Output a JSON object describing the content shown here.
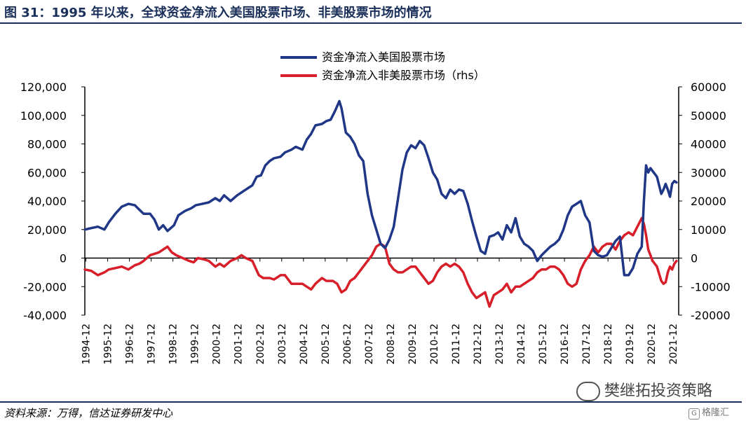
{
  "header": {
    "title": "图 31：1995 年以来，全球资金净流入美国股票市场、非美股票市场的情况"
  },
  "footer": {
    "source": "资料来源：万得，信达证券研发中心",
    "watermark": "樊继拓投资策略",
    "badge": "格隆汇"
  },
  "chart_data": {
    "type": "line",
    "title": "",
    "xlabel": "",
    "ylabel": "",
    "x_ticks": [
      "1994-12",
      "1995-12",
      "1996-12",
      "1997-12",
      "1998-12",
      "1999-12",
      "2000-12",
      "2001-12",
      "2002-12",
      "2003-12",
      "2004-12",
      "2005-12",
      "2006-12",
      "2007-12",
      "2008-12",
      "2009-12",
      "2010-12",
      "2011-12",
      "2012-12",
      "2013-12",
      "2014-12",
      "2015-12",
      "2016-12",
      "2017-12",
      "2018-12",
      "2019-12",
      "2020-12",
      "2021-12"
    ],
    "xlim": [
      1994.9,
      2022.2
    ],
    "y_left": {
      "lim": [
        -40000,
        120000
      ],
      "ticks": [
        -40000,
        -20000,
        0,
        20000,
        40000,
        60000,
        80000,
        100000,
        120000
      ],
      "labels": [
        "-40,000",
        "-20,000",
        "0",
        "20,000",
        "40,000",
        "60,000",
        "80,000",
        "100,000",
        "120,000"
      ]
    },
    "y_right": {
      "lim": [
        -20000,
        60000
      ],
      "ticks": [
        -20000,
        -10000,
        0,
        10000,
        20000,
        30000,
        40000,
        50000,
        60000
      ],
      "labels": [
        "-20000",
        "-10000",
        "0",
        "10000",
        "20000",
        "30000",
        "40000",
        "50000",
        "60000"
      ]
    },
    "series": [
      {
        "name": "资金净流入美国股票市场",
        "axis": "left",
        "color": "#1f3786",
        "points": [
          [
            1994.9,
            20000
          ],
          [
            1995.2,
            21000
          ],
          [
            1995.5,
            22000
          ],
          [
            1995.8,
            20000
          ],
          [
            1996.0,
            25000
          ],
          [
            1996.3,
            31000
          ],
          [
            1996.6,
            36000
          ],
          [
            1996.9,
            38000
          ],
          [
            1997.2,
            37000
          ],
          [
            1997.4,
            34000
          ],
          [
            1997.6,
            31000
          ],
          [
            1997.9,
            31000
          ],
          [
            1998.1,
            27000
          ],
          [
            1998.3,
            20000
          ],
          [
            1998.5,
            23000
          ],
          [
            1998.7,
            19000
          ],
          [
            1999.0,
            23000
          ],
          [
            1999.2,
            30000
          ],
          [
            1999.5,
            33000
          ],
          [
            1999.8,
            35000
          ],
          [
            2000.0,
            37000
          ],
          [
            2000.3,
            38000
          ],
          [
            2000.6,
            39000
          ],
          [
            2000.9,
            42000
          ],
          [
            2001.1,
            40000
          ],
          [
            2001.3,
            44000
          ],
          [
            2001.6,
            40000
          ],
          [
            2001.9,
            44000
          ],
          [
            2002.1,
            46000
          ],
          [
            2002.3,
            48000
          ],
          [
            2002.6,
            51000
          ],
          [
            2002.8,
            57000
          ],
          [
            2003.0,
            58000
          ],
          [
            2003.2,
            65000
          ],
          [
            2003.4,
            68000
          ],
          [
            2003.6,
            70000
          ],
          [
            2003.9,
            71000
          ],
          [
            2004.1,
            74000
          ],
          [
            2004.4,
            76000
          ],
          [
            2004.6,
            78000
          ],
          [
            2004.9,
            76000
          ],
          [
            2005.1,
            83000
          ],
          [
            2005.3,
            87000
          ],
          [
            2005.5,
            93000
          ],
          [
            2005.8,
            94000
          ],
          [
            2006.0,
            96000
          ],
          [
            2006.2,
            97000
          ],
          [
            2006.4,
            103000
          ],
          [
            2006.6,
            110000
          ],
          [
            2006.7,
            105000
          ],
          [
            2006.9,
            88000
          ],
          [
            2007.1,
            85000
          ],
          [
            2007.3,
            80000
          ],
          [
            2007.5,
            72000
          ],
          [
            2007.7,
            68000
          ],
          [
            2007.9,
            45000
          ],
          [
            2008.1,
            30000
          ],
          [
            2008.3,
            20000
          ],
          [
            2008.5,
            10000
          ],
          [
            2008.7,
            7000
          ],
          [
            2008.9,
            13000
          ],
          [
            2009.1,
            22000
          ],
          [
            2009.3,
            42000
          ],
          [
            2009.5,
            62000
          ],
          [
            2009.7,
            74000
          ],
          [
            2009.9,
            79000
          ],
          [
            2010.1,
            77000
          ],
          [
            2010.3,
            82000
          ],
          [
            2010.5,
            79000
          ],
          [
            2010.7,
            70000
          ],
          [
            2010.9,
            60000
          ],
          [
            2011.1,
            55000
          ],
          [
            2011.3,
            45000
          ],
          [
            2011.5,
            42000
          ],
          [
            2011.7,
            48000
          ],
          [
            2011.9,
            45000
          ],
          [
            2012.1,
            48000
          ],
          [
            2012.3,
            47000
          ],
          [
            2012.5,
            38000
          ],
          [
            2012.7,
            26000
          ],
          [
            2012.9,
            15000
          ],
          [
            2013.1,
            5000
          ],
          [
            2013.3,
            3000
          ],
          [
            2013.5,
            15000
          ],
          [
            2013.7,
            16000
          ],
          [
            2013.9,
            18000
          ],
          [
            2014.1,
            13000
          ],
          [
            2014.3,
            23000
          ],
          [
            2014.5,
            18000
          ],
          [
            2014.7,
            28000
          ],
          [
            2014.9,
            15000
          ],
          [
            2015.1,
            10000
          ],
          [
            2015.3,
            8000
          ],
          [
            2015.5,
            5000
          ],
          [
            2015.7,
            -2000
          ],
          [
            2015.9,
            2000
          ],
          [
            2016.1,
            5000
          ],
          [
            2016.3,
            8000
          ],
          [
            2016.5,
            10000
          ],
          [
            2016.7,
            13000
          ],
          [
            2016.9,
            20000
          ],
          [
            2017.1,
            30000
          ],
          [
            2017.3,
            36000
          ],
          [
            2017.5,
            38000
          ],
          [
            2017.7,
            40000
          ],
          [
            2017.9,
            30000
          ],
          [
            2018.1,
            25000
          ],
          [
            2018.3,
            5000
          ],
          [
            2018.5,
            2000
          ],
          [
            2018.7,
            1000
          ],
          [
            2018.9,
            2000
          ],
          [
            2019.1,
            7000
          ],
          [
            2019.3,
            12000
          ],
          [
            2019.5,
            15000
          ],
          [
            2019.7,
            -12000
          ],
          [
            2019.9,
            -12000
          ],
          [
            2020.1,
            -7000
          ],
          [
            2020.3,
            3000
          ],
          [
            2020.5,
            8000
          ],
          [
            2020.6,
            40000
          ],
          [
            2020.7,
            65000
          ],
          [
            2020.8,
            60000
          ],
          [
            2020.9,
            63000
          ],
          [
            2021.0,
            61000
          ],
          [
            2021.2,
            57000
          ],
          [
            2021.4,
            45000
          ],
          [
            2021.5,
            48000
          ],
          [
            2021.6,
            52000
          ],
          [
            2021.7,
            48000
          ],
          [
            2021.8,
            43000
          ],
          [
            2021.9,
            52000
          ],
          [
            2022.0,
            54000
          ],
          [
            2022.1,
            53000
          ]
        ]
      },
      {
        "name": "资金净流入非美股票市场（rhs）",
        "axis": "right",
        "color": "#d81e29",
        "points": [
          [
            1994.9,
            -4000
          ],
          [
            1995.2,
            -4500
          ],
          [
            1995.5,
            -6000
          ],
          [
            1995.8,
            -5000
          ],
          [
            1996.0,
            -4000
          ],
          [
            1996.3,
            -3500
          ],
          [
            1996.6,
            -3000
          ],
          [
            1996.9,
            -4000
          ],
          [
            1997.2,
            -2500
          ],
          [
            1997.4,
            -2000
          ],
          [
            1997.6,
            -1000
          ],
          [
            1997.9,
            1000
          ],
          [
            1998.1,
            1500
          ],
          [
            1998.3,
            2000
          ],
          [
            1998.5,
            3000
          ],
          [
            1998.7,
            4000
          ],
          [
            1998.9,
            2000
          ],
          [
            1999.1,
            1000
          ],
          [
            1999.4,
            0
          ],
          [
            1999.7,
            -1000
          ],
          [
            1999.9,
            -1500
          ],
          [
            2000.1,
            0
          ],
          [
            2000.4,
            -500
          ],
          [
            2000.6,
            -1000
          ],
          [
            2000.9,
            -3000
          ],
          [
            2001.1,
            -2000
          ],
          [
            2001.3,
            -3000
          ],
          [
            2001.6,
            -1000
          ],
          [
            2001.9,
            0
          ],
          [
            2002.1,
            1000
          ],
          [
            2002.3,
            0
          ],
          [
            2002.6,
            -1000
          ],
          [
            2002.9,
            -6000
          ],
          [
            2003.1,
            -7000
          ],
          [
            2003.4,
            -7000
          ],
          [
            2003.6,
            -7500
          ],
          [
            2003.9,
            -6000
          ],
          [
            2004.1,
            -6000
          ],
          [
            2004.4,
            -9000
          ],
          [
            2004.6,
            -9000
          ],
          [
            2004.9,
            -9000
          ],
          [
            2005.1,
            -10000
          ],
          [
            2005.3,
            -11000
          ],
          [
            2005.5,
            -9000
          ],
          [
            2005.8,
            -7000
          ],
          [
            2006.0,
            -8000
          ],
          [
            2006.3,
            -8000
          ],
          [
            2006.5,
            -9000
          ],
          [
            2006.7,
            -12000
          ],
          [
            2006.9,
            -11000
          ],
          [
            2007.1,
            -8000
          ],
          [
            2007.3,
            -7000
          ],
          [
            2007.5,
            -5000
          ],
          [
            2007.7,
            -3000
          ],
          [
            2007.9,
            -1000
          ],
          [
            2008.1,
            1000
          ],
          [
            2008.3,
            4000
          ],
          [
            2008.5,
            5000
          ],
          [
            2008.7,
            4000
          ],
          [
            2008.9,
            -2000
          ],
          [
            2009.1,
            -4000
          ],
          [
            2009.3,
            -5000
          ],
          [
            2009.5,
            -5000
          ],
          [
            2009.7,
            -4000
          ],
          [
            2009.9,
            -3000
          ],
          [
            2010.1,
            -3000
          ],
          [
            2010.3,
            -5000
          ],
          [
            2010.5,
            -7000
          ],
          [
            2010.7,
            -9000
          ],
          [
            2010.9,
            -8000
          ],
          [
            2011.1,
            -5000
          ],
          [
            2011.3,
            -3000
          ],
          [
            2011.5,
            -2000
          ],
          [
            2011.7,
            -3000
          ],
          [
            2011.9,
            -2000
          ],
          [
            2012.1,
            -3000
          ],
          [
            2012.3,
            -5000
          ],
          [
            2012.5,
            -9000
          ],
          [
            2012.7,
            -12000
          ],
          [
            2012.9,
            -14000
          ],
          [
            2013.1,
            -13000
          ],
          [
            2013.3,
            -12000
          ],
          [
            2013.5,
            -17000
          ],
          [
            2013.7,
            -13000
          ],
          [
            2013.9,
            -12000
          ],
          [
            2014.1,
            -11000
          ],
          [
            2014.3,
            -9000
          ],
          [
            2014.5,
            -12000
          ],
          [
            2014.7,
            -10000
          ],
          [
            2014.9,
            -10000
          ],
          [
            2015.1,
            -9000
          ],
          [
            2015.3,
            -8000
          ],
          [
            2015.5,
            -7000
          ],
          [
            2015.7,
            -5000
          ],
          [
            2015.9,
            -4000
          ],
          [
            2016.1,
            -4000
          ],
          [
            2016.3,
            -3000
          ],
          [
            2016.5,
            -3000
          ],
          [
            2016.7,
            -4000
          ],
          [
            2016.9,
            -6000
          ],
          [
            2017.1,
            -9000
          ],
          [
            2017.3,
            -10000
          ],
          [
            2017.5,
            -9000
          ],
          [
            2017.7,
            -4000
          ],
          [
            2017.9,
            -1000
          ],
          [
            2018.1,
            1000
          ],
          [
            2018.3,
            4000
          ],
          [
            2018.5,
            2000
          ],
          [
            2018.7,
            4000
          ],
          [
            2018.9,
            5000
          ],
          [
            2019.1,
            5000
          ],
          [
            2019.3,
            3000
          ],
          [
            2019.5,
            6000
          ],
          [
            2019.7,
            8000
          ],
          [
            2019.9,
            9000
          ],
          [
            2020.1,
            8000
          ],
          [
            2020.3,
            11000
          ],
          [
            2020.5,
            14000
          ],
          [
            2020.6,
            12000
          ],
          [
            2020.7,
            8000
          ],
          [
            2020.8,
            3000
          ],
          [
            2020.9,
            1000
          ],
          [
            2021.0,
            -1000
          ],
          [
            2021.2,
            -3000
          ],
          [
            2021.4,
            -8000
          ],
          [
            2021.5,
            -9000
          ],
          [
            2021.6,
            -8500
          ],
          [
            2021.7,
            -5000
          ],
          [
            2021.8,
            -3000
          ],
          [
            2021.9,
            -4000
          ],
          [
            2022.0,
            -2000
          ],
          [
            2022.1,
            -1000
          ]
        ]
      }
    ],
    "legend": {
      "position": "top-center"
    }
  }
}
